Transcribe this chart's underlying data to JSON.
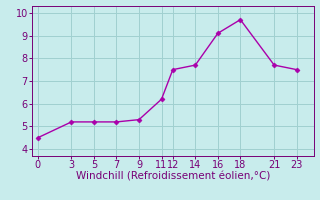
{
  "x": [
    0,
    3,
    5,
    7,
    9,
    11,
    12,
    14,
    16,
    18,
    21,
    23
  ],
  "y": [
    4.5,
    5.2,
    5.2,
    5.2,
    5.3,
    6.2,
    7.5,
    7.7,
    9.1,
    9.7,
    7.7,
    7.5
  ],
  "line_color": "#aa00aa",
  "marker_color": "#aa00aa",
  "background_color": "#c8ecec",
  "grid_color": "#a0d0d0",
  "xlabel": "Windchill (Refroidissement éolien,°C)",
  "xlim": [
    -0.5,
    24.5
  ],
  "ylim": [
    3.7,
    10.3
  ],
  "xticks": [
    0,
    3,
    5,
    7,
    9,
    11,
    12,
    14,
    16,
    18,
    21,
    23
  ],
  "yticks": [
    4,
    5,
    6,
    7,
    8,
    9,
    10
  ],
  "xlabel_color": "#770077",
  "tick_color": "#770077",
  "font_size_xlabel": 7.5,
  "font_size_ticks": 7,
  "line_width": 1.0,
  "marker_size": 2.5
}
